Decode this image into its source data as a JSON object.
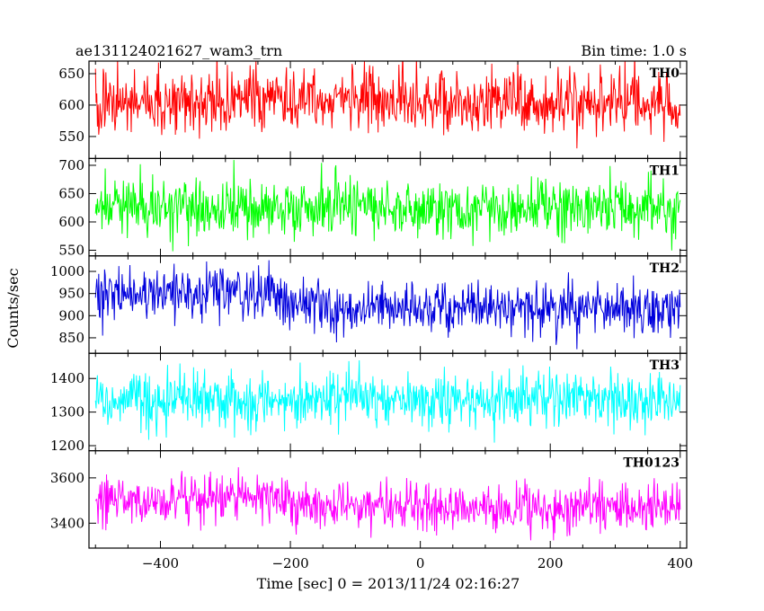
{
  "header": {
    "left": "ae131124021627_wam3_trn",
    "right": "Bin time: 1.0 s"
  },
  "axes": {
    "xlabel": "Time [sec] 0 = 2013/11/24 02:16:27",
    "ylabel": "Counts/sec"
  },
  "chart_data": {
    "type": "line",
    "title": "ae131124021627_wam3_trn",
    "subtitle": "Bin time: 1.0 s",
    "xlabel": "Time [sec] 0 = 2013/11/24 02:16:27",
    "ylabel": "Counts/sec",
    "xlim": [
      -510,
      410
    ],
    "xticks": [
      -400,
      -200,
      0,
      200,
      400
    ],
    "bin_time_s": 1.0,
    "x_start": -500,
    "x_end": 400,
    "panels": [
      {
        "name": "TH0",
        "color": "#ff0000",
        "ylim": [
          515,
          670
        ],
        "yticks": [
          550,
          600,
          650
        ],
        "segments": [
          {
            "from": -500,
            "to": 400,
            "mean": 605,
            "sigma": 25
          }
        ]
      },
      {
        "name": "TH1",
        "color": "#00ff00",
        "ylim": [
          540,
          712
        ],
        "yticks": [
          550,
          600,
          650,
          700
        ],
        "segments": [
          {
            "from": -500,
            "to": 400,
            "mean": 625,
            "sigma": 25
          }
        ]
      },
      {
        "name": "TH2",
        "color": "#0000dd",
        "ylim": [
          815,
          1035
        ],
        "yticks": [
          850,
          900,
          950,
          1000
        ],
        "segments": [
          {
            "from": -500,
            "to": -205,
            "mean": 950,
            "sigma": 30
          },
          {
            "from": -205,
            "to": 400,
            "mean": 915,
            "sigma": 30
          }
        ]
      },
      {
        "name": "TH3",
        "color": "#00ffff",
        "ylim": [
          1185,
          1475
        ],
        "yticks": [
          1200,
          1300,
          1400
        ],
        "segments": [
          {
            "from": -500,
            "to": 400,
            "mean": 1335,
            "sigma": 40
          }
        ]
      },
      {
        "name": "TH0123",
        "color": "#ff00ff",
        "ylim": [
          3290,
          3720
        ],
        "yticks": [
          3400,
          3600
        ],
        "segments": [
          {
            "from": -500,
            "to": -200,
            "mean": 3510,
            "sigma": 55
          },
          {
            "from": -200,
            "to": 400,
            "mean": 3470,
            "sigma": 55
          }
        ]
      }
    ]
  }
}
